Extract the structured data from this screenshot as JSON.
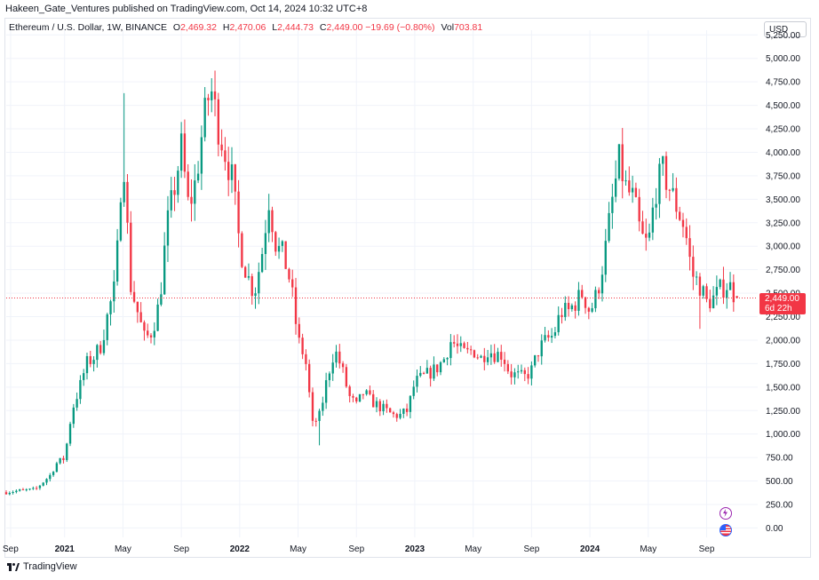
{
  "header": {
    "published_text": "Hakeen_Gate_Ventures published on TradingView.com, Oct 14, 2024 10:32 UTC+8"
  },
  "legend": {
    "symbol": "Ethereum / U.S. Dollar, 1W, BINANCE",
    "o_label": "O",
    "o_value": "2,469.32",
    "h_label": "H",
    "h_value": "2,470.06",
    "l_label": "L",
    "l_value": "2,444.73",
    "c_label": "C",
    "c_value": "2,449.00",
    "change": "−19.69 (−0.80%)",
    "vol_label": "Vol",
    "vol_value": "703.81"
  },
  "toolbar": {
    "currency": "USD"
  },
  "price_badge": {
    "price": "2,449.00",
    "countdown": "6d 22h"
  },
  "footer": {
    "brand": "TradingView"
  },
  "colors": {
    "up": "#089981",
    "down": "#f23645",
    "grid": "#f0f3fa",
    "axis_text": "#131722",
    "last_price_line": "#f23645"
  },
  "icons": {
    "events": "lightning-icon",
    "economic": "us-flag-icon",
    "logo": "tradingview-logo-icon"
  },
  "chart_data": {
    "type": "candlestick",
    "interval": "1W",
    "y_axis": {
      "ticks": [
        0,
        250,
        500,
        750,
        1000,
        1250,
        1500,
        1750,
        2000,
        2250,
        2500,
        2750,
        3000,
        3250,
        3500,
        3750,
        4000,
        4250,
        4500,
        4750,
        5000,
        5250
      ],
      "tick_labels": [
        "0.00",
        "250.00",
        "500.00",
        "750.00",
        "1,000.00",
        "1,250.00",
        "1,500.00",
        "1,750.00",
        "2,000.00",
        "2,250.00",
        "2,500.00",
        "2,750.00",
        "3,000.00",
        "3,250.00",
        "3,500.00",
        "3,750.00",
        "4,000.00",
        "4,250.00",
        "4,500.00",
        "4,750.00",
        "5,000.00",
        "5,250.00"
      ],
      "range": [
        -100,
        5300
      ]
    },
    "x_axis": {
      "range_months": [
        0,
        51.5
      ],
      "ticks": [
        {
          "label": "Sep",
          "m": 0.3
        },
        {
          "label": "2021",
          "m": 4
        },
        {
          "label": "May",
          "m": 8
        },
        {
          "label": "Sep",
          "m": 12
        },
        {
          "label": "2022",
          "m": 16
        },
        {
          "label": "May",
          "m": 20
        },
        {
          "label": "Sep",
          "m": 24
        },
        {
          "label": "2023",
          "m": 28
        },
        {
          "label": "May",
          "m": 32
        },
        {
          "label": "Sep",
          "m": 36
        },
        {
          "label": "2024",
          "m": 40
        },
        {
          "label": "May",
          "m": 44
        },
        {
          "label": "Sep",
          "m": 48
        }
      ]
    },
    "last_price": 2449,
    "close_path_months": [
      [
        0,
        380
      ],
      [
        1,
        400
      ],
      [
        2,
        410
      ],
      [
        3,
        560
      ],
      [
        3.5,
        700
      ],
      [
        4,
        740
      ],
      [
        4.5,
        1250
      ],
      [
        5,
        1480
      ],
      [
        5.5,
        1750
      ],
      [
        6,
        1820
      ],
      [
        6.5,
        1950
      ],
      [
        7,
        2300
      ],
      [
        7.5,
        2600
      ],
      [
        8,
        4100
      ],
      [
        8.5,
        2600
      ],
      [
        9,
        2300
      ],
      [
        9.5,
        2000
      ],
      [
        10,
        2100
      ],
      [
        10.5,
        2400
      ],
      [
        11,
        3200
      ],
      [
        11.5,
        3600
      ],
      [
        12,
        4050
      ],
      [
        12.5,
        3400
      ],
      [
        13,
        3700
      ],
      [
        13.5,
        4300
      ],
      [
        14,
        4700
      ],
      [
        14.5,
        4300
      ],
      [
        15,
        4000
      ],
      [
        15.5,
        3700
      ],
      [
        16,
        3000
      ],
      [
        16.5,
        2700
      ],
      [
        17,
        2500
      ],
      [
        17.5,
        2900
      ],
      [
        18,
        3500
      ],
      [
        18.5,
        3000
      ],
      [
        19,
        2900
      ],
      [
        19.5,
        2600
      ],
      [
        20,
        2000
      ],
      [
        20.5,
        1800
      ],
      [
        21,
        1100
      ],
      [
        21.5,
        1200
      ],
      [
        22,
        1600
      ],
      [
        22.5,
        1900
      ],
      [
        23,
        1700
      ],
      [
        23.5,
        1400
      ],
      [
        24,
        1300
      ],
      [
        24.5,
        1450
      ],
      [
        25,
        1350
      ],
      [
        25.5,
        1300
      ],
      [
        26,
        1250
      ],
      [
        26.5,
        1200
      ],
      [
        27,
        1200
      ],
      [
        27.5,
        1250
      ],
      [
        28,
        1550
      ],
      [
        28.5,
        1600
      ],
      [
        29,
        1650
      ],
      [
        29.5,
        1700
      ],
      [
        30,
        1800
      ],
      [
        30.5,
        2000
      ],
      [
        31,
        1900
      ],
      [
        31.5,
        1850
      ],
      [
        32,
        1900
      ],
      [
        32.5,
        1800
      ],
      [
        33,
        1900
      ],
      [
        33.5,
        1850
      ],
      [
        34,
        1850
      ],
      [
        34.5,
        1650
      ],
      [
        35,
        1620
      ],
      [
        35.5,
        1600
      ],
      [
        36,
        1680
      ],
      [
        36.5,
        1900
      ],
      [
        37,
        2000
      ],
      [
        37.5,
        2050
      ],
      [
        38,
        2300
      ],
      [
        38.5,
        2300
      ],
      [
        39,
        2400
      ],
      [
        39.5,
        2500
      ],
      [
        40,
        2300
      ],
      [
        40.5,
        2500
      ],
      [
        41,
        2900
      ],
      [
        41.5,
        3450
      ],
      [
        42,
        3900
      ],
      [
        42.5,
        3600
      ],
      [
        43,
        3500
      ],
      [
        43.5,
        3100
      ],
      [
        44,
        3000
      ],
      [
        44.5,
        3600
      ],
      [
        45,
        3800
      ],
      [
        45.5,
        3600
      ],
      [
        46,
        3400
      ],
      [
        46.5,
        3200
      ],
      [
        47,
        2700
      ],
      [
        47.5,
        2600
      ],
      [
        48,
        2400
      ],
      [
        48.5,
        2450
      ],
      [
        49,
        2550
      ],
      [
        49.5,
        2600
      ],
      [
        50,
        2450
      ],
      [
        50.3,
        2449
      ]
    ],
    "wick_extremes": [
      {
        "m": 8.0,
        "high": 4630
      },
      {
        "m": 14.2,
        "high": 4870
      },
      {
        "m": 21.4,
        "low": 880
      },
      {
        "m": 42.0,
        "high": 4090
      },
      {
        "m": 45.0,
        "high": 3960
      },
      {
        "m": 47.6,
        "low": 2120
      }
    ]
  }
}
